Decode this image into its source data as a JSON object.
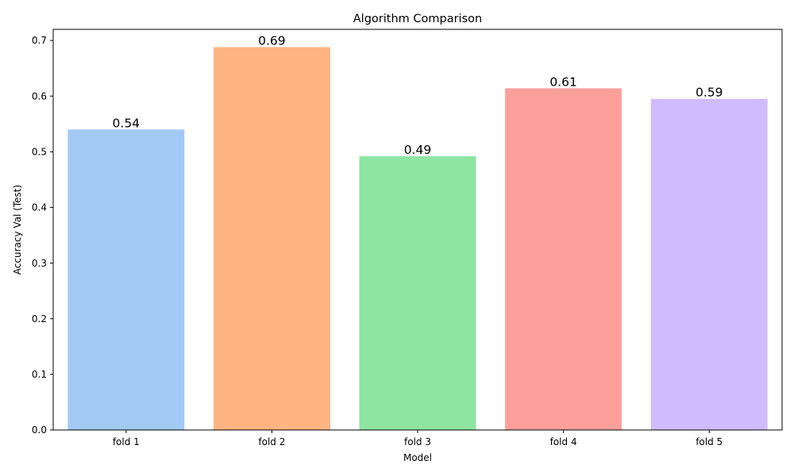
{
  "chart_data": {
    "type": "bar",
    "title": "Algorithm Comparison",
    "xlabel": "Model",
    "ylabel": "Accuracy Val (Test)",
    "categories": [
      "fold 1",
      "fold 2",
      "fold 3",
      "fold 4",
      "fold 5"
    ],
    "values": [
      0.54,
      0.688,
      0.492,
      0.614,
      0.595
    ],
    "data_labels": [
      "0.54",
      "0.69",
      "0.49",
      "0.61",
      "0.59"
    ],
    "colors": [
      "#a1c9f4",
      "#ffb482",
      "#8de5a1",
      "#ff9f9b",
      "#d0bbff"
    ],
    "ylim": [
      0,
      0.72
    ],
    "yticks": [
      0.0,
      0.1,
      0.2,
      0.3,
      0.4,
      0.5,
      0.6,
      0.7
    ],
    "ytick_labels": [
      "0.0",
      "0.1",
      "0.2",
      "0.3",
      "0.4",
      "0.5",
      "0.6",
      "0.7"
    ],
    "grid": false,
    "legend": "none"
  }
}
